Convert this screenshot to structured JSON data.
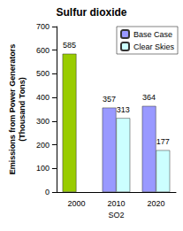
{
  "chart_data": {
    "type": "bar",
    "title": "Sulfur dioxide",
    "x_label": "SO2",
    "y_label": "Emissions from Power Generators\n(Thousand Tons)",
    "categories": [
      "2000",
      "2010",
      "2020"
    ],
    "series": [
      {
        "name": "Base Case",
        "color": "#9999ff",
        "colors": [
          "#99cc00",
          "#9999ff",
          "#9999ff"
        ],
        "values": [
          585,
          357,
          364
        ]
      },
      {
        "name": "Clear Skies",
        "color": "#ccffff",
        "values": [
          null,
          313,
          177
        ]
      }
    ],
    "ylim": [
      0,
      700
    ],
    "yticks": [
      0,
      100,
      200,
      300,
      400,
      500,
      600,
      700
    ],
    "grid": false,
    "legend": "top-right",
    "data_labels": true
  }
}
